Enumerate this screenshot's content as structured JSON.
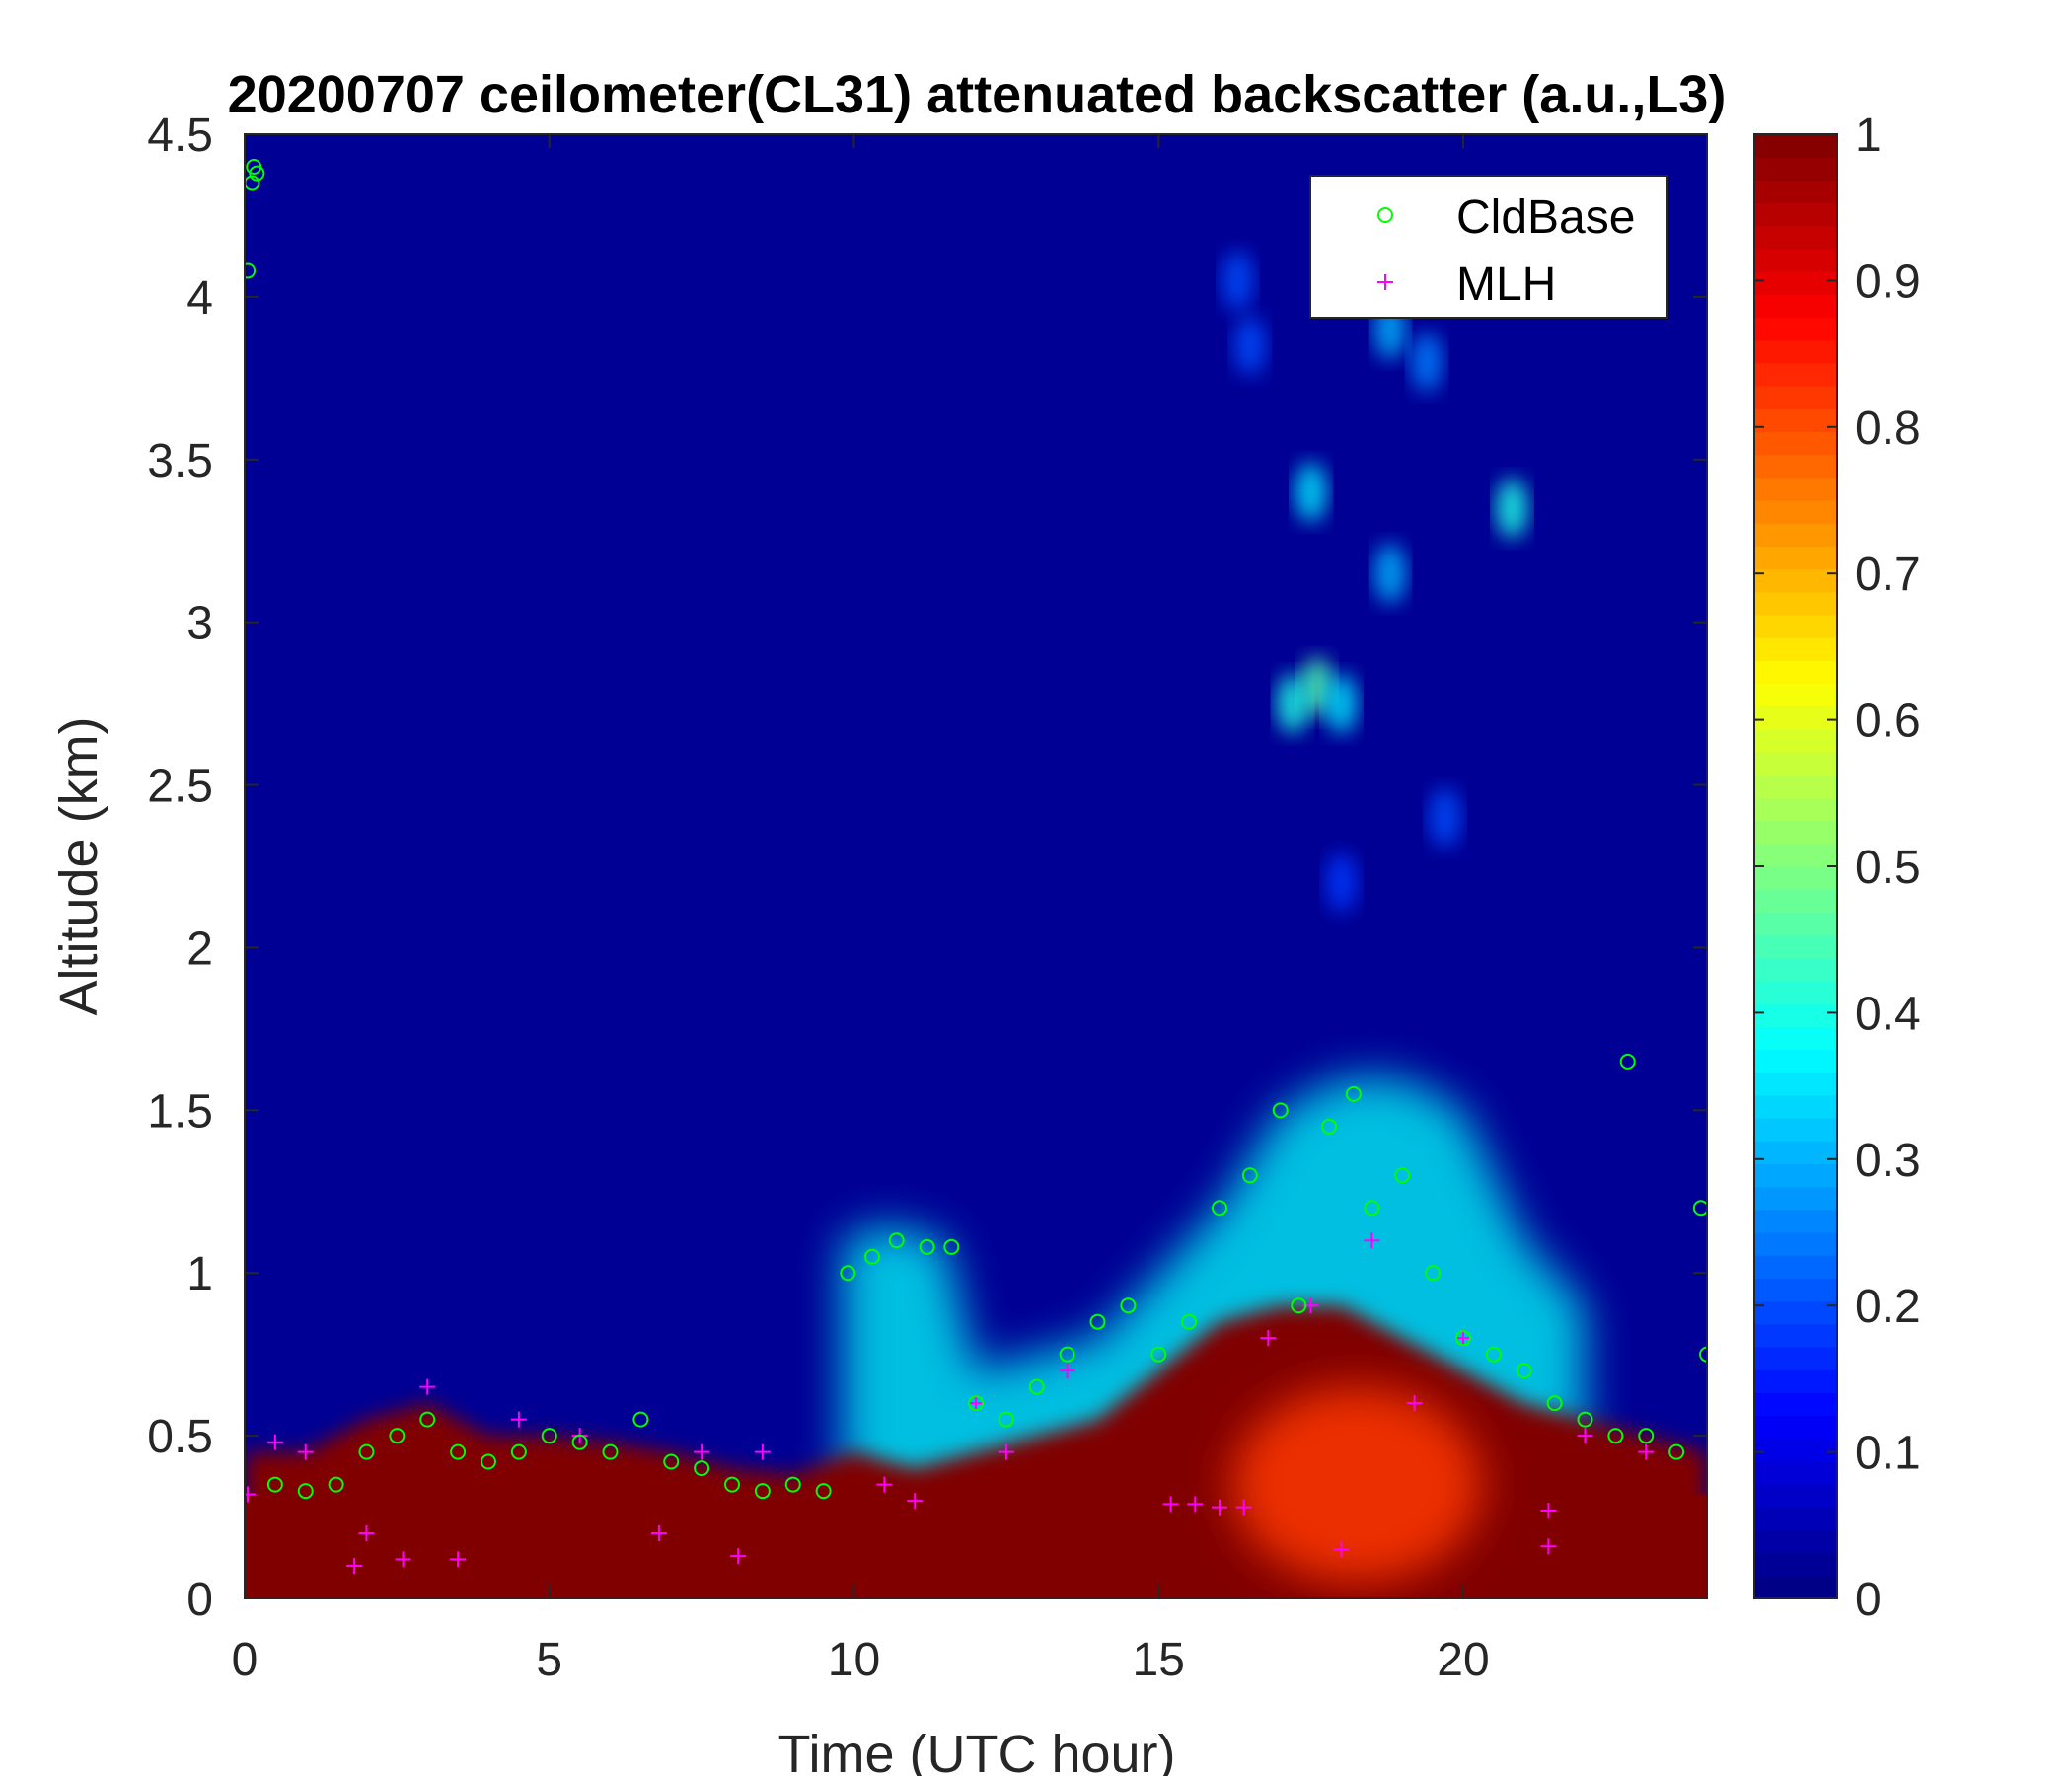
{
  "chart_data": {
    "type": "heatmap",
    "title": "20200707 ceilometer(CL31) attenuated backscatter (a.u.,L3)",
    "xlabel": "Time (UTC hour)",
    "ylabel": "Altitude (km)",
    "xlim": [
      0,
      24
    ],
    "ylim": [
      0,
      4.5
    ],
    "xticks": [
      0,
      5,
      10,
      15,
      20
    ],
    "yticks": [
      0,
      0.5,
      1,
      1.5,
      2,
      2.5,
      3,
      3.5,
      4,
      4.5
    ],
    "colorbar": {
      "colormap": "jet",
      "range": [
        0,
        1
      ],
      "ticks": [
        0,
        0.1,
        0.2,
        0.3,
        0.4,
        0.5,
        0.6,
        0.7,
        0.8,
        0.9,
        1
      ]
    },
    "background_value": 0.02,
    "boundary_layer_top_km": [
      [
        0,
        0.45
      ],
      [
        1,
        0.45
      ],
      [
        2,
        0.55
      ],
      [
        3,
        0.6
      ],
      [
        4,
        0.5
      ],
      [
        5,
        0.5
      ],
      [
        6,
        0.48
      ],
      [
        7,
        0.45
      ],
      [
        8,
        0.4
      ],
      [
        9,
        0.38
      ],
      [
        10,
        0.45
      ],
      [
        11,
        0.4
      ],
      [
        12,
        0.45
      ],
      [
        13,
        0.5
      ],
      [
        14,
        0.55
      ],
      [
        15,
        0.7
      ],
      [
        16,
        0.85
      ],
      [
        17,
        0.9
      ],
      [
        18,
        0.9
      ],
      [
        19,
        0.8
      ],
      [
        20,
        0.7
      ],
      [
        21,
        0.6
      ],
      [
        22,
        0.55
      ],
      [
        23,
        0.5
      ],
      [
        24,
        0.45
      ]
    ],
    "weak_layer_km": [
      [
        9.8,
        1.1
      ],
      [
        10.5,
        1.15
      ],
      [
        11.5,
        1.1
      ],
      [
        12,
        0.7
      ],
      [
        14,
        0.8
      ],
      [
        16,
        1.2
      ],
      [
        17,
        1.5
      ],
      [
        18,
        1.6
      ],
      [
        19,
        1.6
      ],
      [
        20,
        1.5
      ],
      [
        21,
        1.1
      ],
      [
        22,
        0.9
      ]
    ],
    "reduced_core": {
      "x_range": [
        16.2,
        20.3
      ],
      "y_range": [
        0.05,
        0.65
      ],
      "value": 0.82
    },
    "aloft_features": [
      {
        "x": 17.6,
        "y": 2.8,
        "value": 0.45
      },
      {
        "x": 17.2,
        "y": 2.75,
        "value": 0.4
      },
      {
        "x": 18.0,
        "y": 2.75,
        "value": 0.35
      },
      {
        "x": 17.5,
        "y": 3.4,
        "value": 0.35
      },
      {
        "x": 18.8,
        "y": 3.15,
        "value": 0.3
      },
      {
        "x": 20.8,
        "y": 3.35,
        "value": 0.4
      },
      {
        "x": 18.8,
        "y": 3.9,
        "value": 0.3
      },
      {
        "x": 19.4,
        "y": 3.8,
        "value": 0.25
      },
      {
        "x": 16.5,
        "y": 3.85,
        "value": 0.2
      },
      {
        "x": 16.3,
        "y": 4.05,
        "value": 0.2
      },
      {
        "x": 19.7,
        "y": 2.4,
        "value": 0.2
      },
      {
        "x": 18.0,
        "y": 2.2,
        "value": 0.18
      }
    ],
    "series": [
      {
        "name": "CldBase",
        "marker": "circle",
        "color": "#00ff00",
        "points": [
          [
            0.05,
            4.08
          ],
          [
            0.12,
            4.35
          ],
          [
            0.15,
            4.4
          ],
          [
            0.2,
            4.38
          ],
          [
            0.5,
            0.35
          ],
          [
            1,
            0.33
          ],
          [
            1.5,
            0.35
          ],
          [
            2,
            0.45
          ],
          [
            2.5,
            0.5
          ],
          [
            3,
            0.55
          ],
          [
            3.5,
            0.45
          ],
          [
            4,
            0.42
          ],
          [
            4.5,
            0.45
          ],
          [
            5,
            0.5
          ],
          [
            5.5,
            0.48
          ],
          [
            6,
            0.45
          ],
          [
            6.5,
            0.55
          ],
          [
            7,
            0.42
          ],
          [
            7.5,
            0.4
          ],
          [
            8,
            0.35
          ],
          [
            8.5,
            0.33
          ],
          [
            9,
            0.35
          ],
          [
            9.5,
            0.33
          ],
          [
            9.9,
            1.0
          ],
          [
            10.3,
            1.05
          ],
          [
            10.7,
            1.1
          ],
          [
            11.2,
            1.08
          ],
          [
            11.6,
            1.08
          ],
          [
            12,
            0.6
          ],
          [
            12.5,
            0.55
          ],
          [
            13,
            0.65
          ],
          [
            13.5,
            0.75
          ],
          [
            14,
            0.85
          ],
          [
            14.5,
            0.9
          ],
          [
            15,
            0.75
          ],
          [
            15.5,
            0.85
          ],
          [
            16,
            1.2
          ],
          [
            16.5,
            1.3
          ],
          [
            17,
            1.5
          ],
          [
            17.3,
            0.9
          ],
          [
            17.8,
            1.45
          ],
          [
            18.2,
            1.55
          ],
          [
            18.5,
            1.2
          ],
          [
            19,
            1.3
          ],
          [
            19.5,
            1.0
          ],
          [
            20,
            0.8
          ],
          [
            20.5,
            0.75
          ],
          [
            21,
            0.7
          ],
          [
            21.5,
            0.6
          ],
          [
            22,
            0.55
          ],
          [
            22.5,
            0.5
          ],
          [
            22.7,
            1.65
          ],
          [
            23,
            0.5
          ],
          [
            23.5,
            0.45
          ],
          [
            23.9,
            1.2
          ],
          [
            24,
            0.75
          ]
        ]
      },
      {
        "name": "MLH",
        "marker": "plus",
        "color": "#ff00ff",
        "points": [
          [
            0.05,
            0.32
          ],
          [
            0.5,
            0.48
          ],
          [
            1,
            0.45
          ],
          [
            1.8,
            0.1
          ],
          [
            2,
            0.2
          ],
          [
            2.6,
            0.12
          ],
          [
            3,
            0.65
          ],
          [
            3.5,
            0.12
          ],
          [
            4.5,
            0.55
          ],
          [
            5.5,
            0.5
          ],
          [
            6.8,
            0.2
          ],
          [
            7.5,
            0.45
          ],
          [
            8.1,
            0.13
          ],
          [
            8.5,
            0.45
          ],
          [
            10.5,
            0.35
          ],
          [
            11,
            0.3
          ],
          [
            12,
            0.6
          ],
          [
            12.5,
            0.45
          ],
          [
            13.5,
            0.7
          ],
          [
            15.2,
            0.29
          ],
          [
            15.6,
            0.29
          ],
          [
            16,
            0.28
          ],
          [
            16.4,
            0.28
          ],
          [
            16.8,
            0.8
          ],
          [
            17.5,
            0.9
          ],
          [
            18,
            0.15
          ],
          [
            18.5,
            1.1
          ],
          [
            19.2,
            0.6
          ],
          [
            20,
            0.8
          ],
          [
            21.4,
            0.27
          ],
          [
            21.4,
            0.16
          ],
          [
            22,
            0.5
          ],
          [
            23,
            0.45
          ]
        ]
      }
    ],
    "legend": {
      "placement": "top-right",
      "entries": [
        "CldBase",
        "MLH"
      ]
    }
  }
}
